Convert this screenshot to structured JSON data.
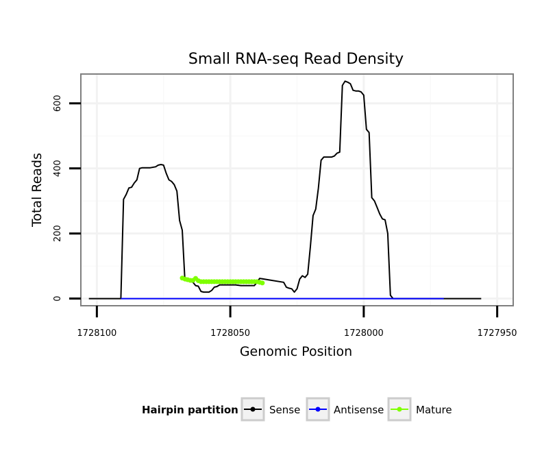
{
  "chart_data": {
    "type": "line",
    "title": "Small RNA-seq Read Density",
    "xlabel": "Genomic Position",
    "ylabel": "Total Reads",
    "xlim": [
      1728106,
      1727944
    ],
    "ylim": [
      -22,
      690
    ],
    "x_reversed": true,
    "grid": true,
    "x_ticks": [
      1728100,
      1728050,
      1728000,
      1727950
    ],
    "x_tick_labels": [
      "1728100",
      "1728050",
      "1728000",
      "1727950"
    ],
    "y_ticks": [
      0,
      200,
      400,
      600
    ],
    "y_tick_labels": [
      "0",
      "200",
      "400",
      "600"
    ],
    "legend": {
      "title": "Hairpin partition",
      "position": "bottom",
      "entries": [
        "Sense",
        "Antisense",
        "Mature"
      ]
    },
    "series": [
      {
        "name": "Sense",
        "color": "#000000",
        "x": [
          1728103,
          1728091,
          1728090,
          1728089,
          1728088,
          1728087,
          1728086,
          1728085,
          1728084,
          1728083,
          1728082,
          1728080,
          1728078,
          1728077,
          1728076,
          1728075,
          1728074,
          1728073,
          1728072,
          1728071,
          1728070,
          1728069,
          1728068,
          1728067,
          1728066,
          1728065,
          1728064,
          1728063,
          1728062,
          1728061,
          1728060,
          1728059,
          1728058,
          1728057,
          1728056,
          1728055,
          1728054,
          1728052,
          1728050,
          1728048,
          1728046,
          1728044,
          1728043,
          1728042,
          1728041,
          1728040,
          1728039,
          1728030,
          1728029,
          1728028,
          1728027,
          1728026,
          1728025,
          1728024,
          1728023,
          1728022,
          1728021,
          1728020,
          1728019,
          1728018,
          1728017,
          1728016,
          1728015,
          1728014,
          1728013,
          1728012,
          1728011,
          1728010,
          1728009,
          1728008,
          1728007,
          1728006,
          1728005,
          1728004,
          1728003,
          1728002,
          1728001,
          1728000,
          1727999,
          1727998,
          1727997,
          1727996,
          1727995,
          1727994,
          1727993,
          1727992,
          1727991,
          1727990,
          1727989,
          1727988,
          1727987,
          1727986,
          1727985,
          1727984,
          1727983,
          1727982,
          1727981,
          1727980,
          1727979,
          1727978,
          1727977,
          1727976,
          1727975,
          1727974,
          1727973,
          1727972,
          1727971,
          1727970,
          1727968,
          1727966,
          1727956
        ],
        "y": [
          0,
          0,
          305,
          320,
          340,
          342,
          355,
          365,
          400,
          402,
          402,
          402,
          405,
          410,
          412,
          410,
          385,
          365,
          360,
          350,
          330,
          240,
          210,
          55,
          55,
          53,
          50,
          40,
          38,
          22,
          20,
          20,
          20,
          25,
          35,
          37,
          42,
          42,
          42,
          42,
          40,
          40,
          40,
          40,
          40,
          50,
          62,
          50,
          35,
          32,
          30,
          20,
          30,
          60,
          70,
          65,
          75,
          160,
          255,
          275,
          340,
          425,
          435,
          435,
          435,
          435,
          438,
          447,
          450,
          655,
          668,
          665,
          660,
          640,
          638,
          638,
          635,
          625,
          520,
          510,
          310,
          300,
          280,
          260,
          245,
          242,
          200,
          10,
          0,
          0,
          0,
          0,
          0,
          0,
          0,
          0,
          0,
          0,
          0,
          0,
          0,
          0,
          0,
          0,
          0,
          0,
          0,
          0,
          0,
          0,
          0
        ]
      },
      {
        "name": "Antisense",
        "color": "#0000ff",
        "x": [
          1728091,
          1727970
        ],
        "y": [
          0,
          0
        ]
      },
      {
        "name": "Mature",
        "color": "#7fff00",
        "x": [
          1728068,
          1728067,
          1728066,
          1728065,
          1728064,
          1728063,
          1728062,
          1728061,
          1728060,
          1728059,
          1728058,
          1728057,
          1728056,
          1728055,
          1728054,
          1728053,
          1728052,
          1728051,
          1728050,
          1728049,
          1728048,
          1728047,
          1728046,
          1728045,
          1728044,
          1728043,
          1728042,
          1728041,
          1728040,
          1728039,
          1728038
        ],
        "y": [
          63,
          60,
          58,
          56,
          56,
          62,
          55,
          52,
          52,
          52,
          52,
          52,
          52,
          52,
          52,
          52,
          52,
          52,
          52,
          52,
          52,
          52,
          52,
          52,
          52,
          52,
          52,
          52,
          52,
          50,
          48
        ]
      }
    ]
  }
}
